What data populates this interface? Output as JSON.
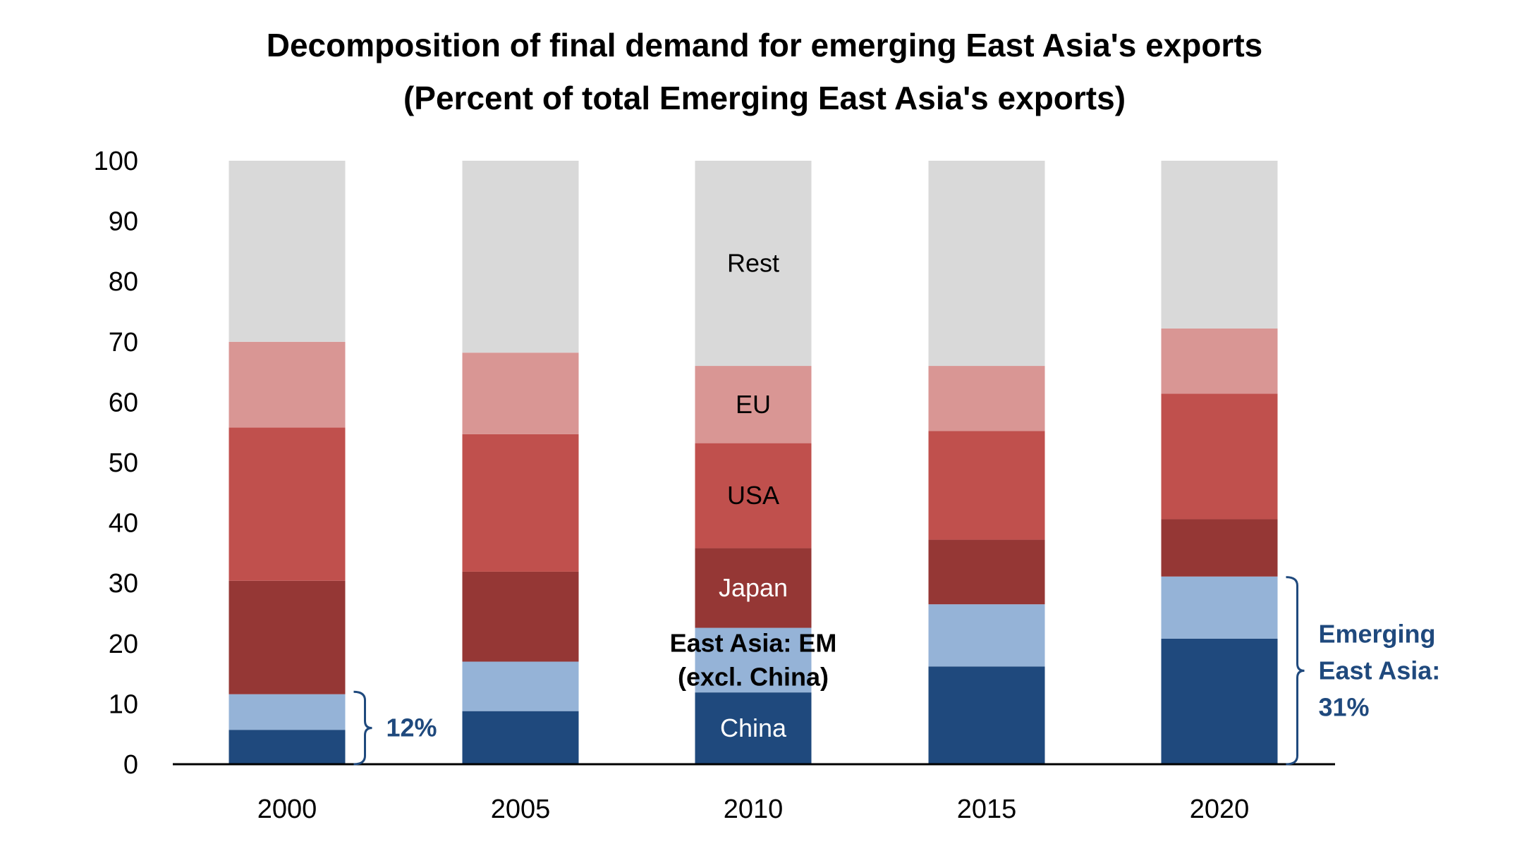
{
  "chart_data": {
    "type": "bar",
    "stacked": true,
    "title": "Decomposition of final demand for emerging East Asia's exports",
    "subtitle": "(Percent of total Emerging East Asia's exports)",
    "xlabel": "",
    "ylabel": "",
    "ylim": [
      0,
      100
    ],
    "yticks": [
      0,
      10,
      20,
      30,
      40,
      50,
      60,
      70,
      80,
      90,
      100
    ],
    "grid": false,
    "legend": "none (labels inside 2010 bar)",
    "categories": [
      "2000",
      "2005",
      "2010",
      "2015",
      "2020"
    ],
    "series": [
      {
        "name": "China",
        "label_lines": [
          "China"
        ],
        "color": "#1F497D",
        "label_color": "#ffffff",
        "values": [
          5.7,
          8.8,
          11.9,
          16.2,
          20.8
        ]
      },
      {
        "name": "East Asia: EM (excl. China)",
        "label_lines": [
          "East Asia: EM",
          "(excl. China)"
        ],
        "color": "#95B3D7",
        "label_color": "#000000",
        "label_bold": true,
        "values": [
          5.9,
          8.2,
          10.7,
          10.3,
          10.3
        ]
      },
      {
        "name": "Japan",
        "label_lines": [
          "Japan"
        ],
        "color": "#953735",
        "label_color": "#ffffff",
        "values": [
          18.8,
          14.9,
          13.2,
          10.7,
          9.5
        ]
      },
      {
        "name": "USA",
        "label_lines": [
          "USA"
        ],
        "color": "#C0504D",
        "label_color": "#000000",
        "values": [
          25.4,
          22.8,
          17.4,
          18.0,
          20.8
        ]
      },
      {
        "name": "EU",
        "label_lines": [
          "EU"
        ],
        "color": "#D99694",
        "label_color": "#000000",
        "values": [
          14.2,
          13.5,
          12.8,
          10.8,
          10.8
        ]
      },
      {
        "name": "Rest",
        "label_lines": [
          "Rest"
        ],
        "color": "#D9D9D9",
        "label_color": "#000000",
        "values": [
          30.0,
          31.8,
          34.0,
          34.0,
          27.8
        ]
      }
    ],
    "label_category": "2010",
    "annotations": [
      {
        "category": "2000",
        "range": [
          0,
          12
        ],
        "lines": [
          "12%"
        ],
        "color": "#1F497D"
      },
      {
        "category": "2020",
        "range": [
          0,
          31
        ],
        "lines": [
          "Emerging",
          "East Asia:",
          "31%"
        ],
        "color": "#1F497D"
      }
    ]
  }
}
